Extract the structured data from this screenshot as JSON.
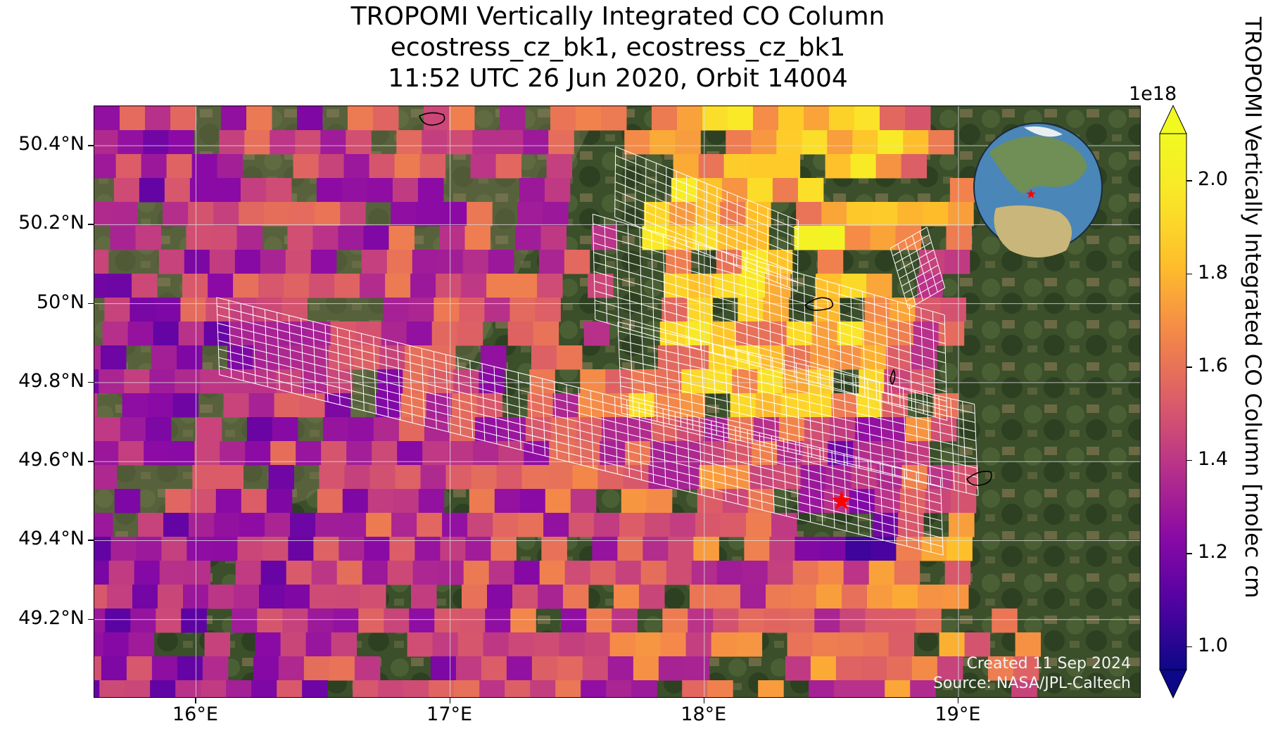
{
  "title_lines": [
    "TROPOMI Vertically Integrated CO Column",
    "ecostress_cz_bk1, ecostress_cz_bk1",
    "11:52 UTC 26 Jun 2020, Orbit 14004"
  ],
  "axes": {
    "lon_range": [
      15.6,
      19.72
    ],
    "lat_range": [
      49.0,
      50.5
    ],
    "x_ticks": [
      {
        "value": 16,
        "label": "16°E"
      },
      {
        "value": 17,
        "label": "17°E"
      },
      {
        "value": 18,
        "label": "18°E"
      },
      {
        "value": 19,
        "label": "19°E"
      }
    ],
    "y_ticks": [
      {
        "value": 50.4,
        "label": "50.4°N"
      },
      {
        "value": 50.2,
        "label": "50.2°N"
      },
      {
        "value": 50.0,
        "label": "50°N"
      },
      {
        "value": 49.8,
        "label": "49.8°N"
      },
      {
        "value": 49.6,
        "label": "49.6°N"
      },
      {
        "value": 49.4,
        "label": "49.4°N"
      },
      {
        "value": 49.2,
        "label": "49.2°N"
      }
    ],
    "grid": true
  },
  "colorbar": {
    "label": "TROPOMI Vertically Integrated CO Column [molec cm",
    "exponent": "1e18",
    "range": [
      0.95,
      2.1
    ],
    "colormap": "plasma",
    "extend": "both",
    "ticks": [
      {
        "value": 1.0,
        "label": "1.0"
      },
      {
        "value": 1.2,
        "label": "1.2"
      },
      {
        "value": 1.4,
        "label": "1.4"
      },
      {
        "value": 1.6,
        "label": "1.6"
      },
      {
        "value": 1.8,
        "label": "1.8"
      },
      {
        "value": 2.0,
        "label": "2.0"
      }
    ]
  },
  "credit": {
    "line1": "Created 11 Sep 2024",
    "line2": "Source: NASA/JPL-Caltech"
  },
  "target_marker": {
    "lon": 18.54,
    "lat": 49.5,
    "color": "#ff0000",
    "icon": "star-icon"
  },
  "inset_globe": {
    "icon": "globe-icon",
    "marker_color": "#ff0000"
  },
  "colors": {
    "background_forest": "#3a4f2a",
    "footprint_outline": "#ffffff",
    "gridline": "#dddddd",
    "credit_text": "#f2f2f2"
  }
}
